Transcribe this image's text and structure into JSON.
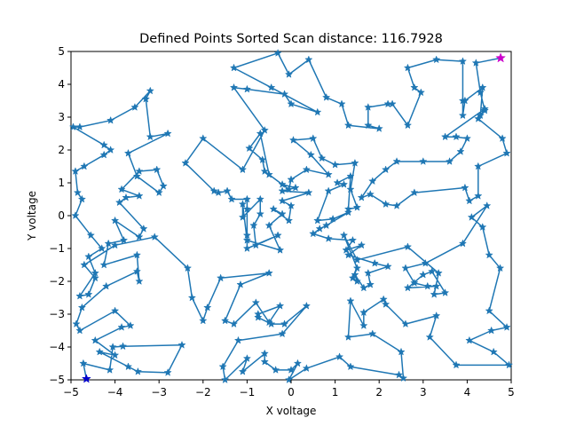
{
  "chart_data": {
    "type": "line",
    "title": "Defined Points Sorted Scan distance: 116.7928",
    "xlabel": "X voltage",
    "ylabel": "Y voltage",
    "xlim": [
      -5,
      5
    ],
    "ylim": [
      -5,
      5
    ],
    "xticks": [
      -5,
      -4,
      -3,
      -2,
      -1,
      0,
      1,
      2,
      3,
      4,
      5
    ],
    "yticks": [
      -5,
      -4,
      -3,
      -2,
      -1,
      0,
      1,
      2,
      3,
      4,
      5
    ],
    "grid": false,
    "line_color": "#1f77b4",
    "marker": "star",
    "start_marker": {
      "x": -4.65,
      "y": -4.97,
      "color": "#0000cc"
    },
    "end_marker": {
      "x": 4.76,
      "y": 4.8,
      "color": "#cc00cc"
    },
    "series": [
      {
        "values": [
          [
            -4.65,
            -4.97
          ],
          [
            -4.72,
            -4.5
          ],
          [
            -4.12,
            -4.7
          ],
          [
            -4.05,
            -4.0
          ],
          [
            -3.82,
            -3.98
          ],
          [
            -2.48,
            -3.94
          ],
          [
            -2.8,
            -4.78
          ],
          [
            -3.48,
            -4.75
          ],
          [
            -3.7,
            -4.6
          ],
          [
            -4.35,
            -4.15
          ],
          [
            -4.0,
            -4.25
          ],
          [
            -4.45,
            -3.8
          ],
          [
            -3.85,
            -3.4
          ],
          [
            -3.65,
            -3.35
          ],
          [
            -4.0,
            -2.9
          ],
          [
            -4.8,
            -3.5
          ],
          [
            -4.88,
            -3.3
          ],
          [
            -4.75,
            -2.8
          ],
          [
            -4.2,
            -2.15
          ],
          [
            -3.5,
            -1.7
          ],
          [
            -3.45,
            -2.0
          ],
          [
            -3.5,
            -1.2
          ],
          [
            -4.25,
            -1.5
          ],
          [
            -4.15,
            -0.85
          ],
          [
            -3.8,
            -0.75
          ],
          [
            -4.0,
            -0.15
          ],
          [
            -3.45,
            -0.65
          ],
          [
            -3.35,
            -0.4
          ],
          [
            -3.9,
            0.4
          ],
          [
            -3.75,
            0.55
          ],
          [
            -3.45,
            0.6
          ],
          [
            -3.85,
            0.8
          ],
          [
            -3.45,
            1.35
          ],
          [
            -3.05,
            1.4
          ],
          [
            -2.9,
            0.9
          ],
          [
            -3.0,
            0.7
          ],
          [
            -3.5,
            1.2
          ],
          [
            -3.7,
            1.9
          ],
          [
            -2.8,
            2.5
          ],
          [
            -3.2,
            2.4
          ],
          [
            -3.3,
            3.55
          ],
          [
            -3.2,
            3.8
          ],
          [
            -3.55,
            3.3
          ],
          [
            -4.1,
            2.9
          ],
          [
            -4.8,
            2.7
          ],
          [
            -4.95,
            2.7
          ],
          [
            -4.25,
            2.15
          ],
          [
            -4.1,
            2.0
          ],
          [
            -4.25,
            1.85
          ],
          [
            -4.7,
            1.5
          ],
          [
            -4.9,
            1.35
          ],
          [
            -4.85,
            0.7
          ],
          [
            -4.75,
            0.5
          ],
          [
            -4.9,
            0.0
          ],
          [
            -4.55,
            -0.6
          ],
          [
            -4.3,
            -1.0
          ],
          [
            -4.6,
            -1.25
          ],
          [
            -4.45,
            -1.75
          ],
          [
            -4.8,
            -2.45
          ],
          [
            -4.6,
            -2.4
          ],
          [
            -4.45,
            -1.9
          ],
          [
            -4.7,
            -1.5
          ],
          [
            -4.0,
            -0.9
          ],
          [
            -3.1,
            -0.65
          ],
          [
            -2.35,
            -1.6
          ],
          [
            -2.25,
            -2.5
          ],
          [
            -2.0,
            -3.2
          ],
          [
            -1.9,
            -2.8
          ],
          [
            -1.6,
            -1.9
          ],
          [
            -0.5,
            -1.75
          ],
          [
            -1.15,
            -2.1
          ],
          [
            -1.5,
            -3.2
          ],
          [
            -1.3,
            -3.3
          ],
          [
            -0.8,
            -2.65
          ],
          [
            -0.5,
            -3.25
          ],
          [
            -0.25,
            -2.75
          ],
          [
            -0.75,
            -3.0
          ],
          [
            -0.75,
            -3.1
          ],
          [
            -0.45,
            -3.3
          ],
          [
            -0.15,
            -3.3
          ],
          [
            0.35,
            -2.75
          ],
          [
            -0.2,
            -3.6
          ],
          [
            -1.2,
            -3.8
          ],
          [
            -1.55,
            -4.6
          ],
          [
            -1.5,
            -5.0
          ],
          [
            -1.0,
            -4.35
          ],
          [
            -1.1,
            -4.75
          ],
          [
            -0.6,
            -4.2
          ],
          [
            -0.6,
            -4.45
          ],
          [
            -0.35,
            -4.7
          ],
          [
            0.0,
            -4.7
          ],
          [
            0.15,
            -4.5
          ],
          [
            -0.05,
            -5.0
          ],
          [
            0.35,
            -4.65
          ],
          [
            1.1,
            -4.3
          ],
          [
            1.35,
            -4.6
          ],
          [
            2.45,
            -4.85
          ],
          [
            2.55,
            -4.95
          ],
          [
            2.5,
            -4.15
          ],
          [
            1.85,
            -3.6
          ],
          [
            1.3,
            -3.7
          ],
          [
            1.35,
            -2.6
          ],
          [
            1.65,
            -3.35
          ],
          [
            1.65,
            -2.95
          ],
          [
            2.1,
            -2.55
          ],
          [
            2.15,
            -2.7
          ],
          [
            2.6,
            -3.3
          ],
          [
            3.3,
            -3.05
          ],
          [
            3.15,
            -3.7
          ],
          [
            3.75,
            -4.55
          ],
          [
            4.95,
            -4.55
          ],
          [
            4.6,
            -4.15
          ],
          [
            4.05,
            -3.8
          ],
          [
            4.55,
            -3.5
          ],
          [
            4.9,
            -3.4
          ],
          [
            4.5,
            -2.9
          ],
          [
            4.75,
            -1.6
          ],
          [
            4.5,
            -1.2
          ],
          [
            4.35,
            -0.35
          ],
          [
            4.1,
            -0.05
          ],
          [
            4.45,
            0.3
          ],
          [
            3.9,
            -0.85
          ],
          [
            3.05,
            -1.45
          ],
          [
            2.6,
            -1.6
          ],
          [
            2.8,
            -2.05
          ],
          [
            3.1,
            -2.15
          ],
          [
            3.3,
            -2.15
          ],
          [
            2.65,
            -2.2
          ],
          [
            3.0,
            -1.8
          ],
          [
            3.2,
            -1.7
          ],
          [
            3.5,
            -2.35
          ],
          [
            3.25,
            -2.4
          ],
          [
            3.35,
            -1.75
          ],
          [
            2.65,
            -0.95
          ],
          [
            1.5,
            -1.35
          ],
          [
            1.2,
            -0.6
          ],
          [
            1.5,
            -1.6
          ],
          [
            1.4,
            -1.9
          ],
          [
            1.5,
            -2.0
          ],
          [
            1.45,
            -1.8
          ],
          [
            1.65,
            -2.2
          ],
          [
            1.8,
            -2.1
          ],
          [
            1.75,
            -1.75
          ],
          [
            2.2,
            -1.55
          ],
          [
            1.9,
            -1.45
          ],
          [
            1.3,
            -1.2
          ],
          [
            1.6,
            -0.9
          ],
          [
            1.25,
            -1.05
          ],
          [
            1.4,
            -0.75
          ],
          [
            0.85,
            -0.7
          ],
          [
            0.5,
            -0.55
          ],
          [
            0.65,
            -0.4
          ],
          [
            0.8,
            -0.3
          ],
          [
            1.3,
            0.1
          ],
          [
            0.95,
            -0.1
          ],
          [
            0.6,
            -0.15
          ],
          [
            0.85,
            0.75
          ],
          [
            1.2,
            0.95
          ],
          [
            1.05,
            1.0
          ],
          [
            1.35,
            1.2
          ],
          [
            1.3,
            0.2
          ],
          [
            1.5,
            0.25
          ],
          [
            1.35,
            0.8
          ],
          [
            1.45,
            1.6
          ],
          [
            1.0,
            1.55
          ],
          [
            0.7,
            1.75
          ],
          [
            0.5,
            2.35
          ],
          [
            0.05,
            2.3
          ],
          [
            0.45,
            1.85
          ],
          [
            0.85,
            1.25
          ],
          [
            0.35,
            1.4
          ],
          [
            0.0,
            1.1
          ],
          [
            -0.05,
            0.8
          ],
          [
            -0.6,
            1.35
          ],
          [
            -0.65,
            1.7
          ],
          [
            -0.95,
            2.05
          ],
          [
            -0.7,
            2.5
          ],
          [
            -0.5,
            1.25
          ],
          [
            -0.2,
            0.95
          ],
          [
            0.1,
            0.85
          ],
          [
            -0.2,
            0.75
          ],
          [
            0.4,
            0.7
          ],
          [
            -0.2,
            0.45
          ],
          [
            0.0,
            0.3
          ],
          [
            -0.05,
            -0.15
          ],
          [
            -0.4,
            0.2
          ],
          [
            -0.2,
            0.05
          ],
          [
            -0.5,
            -0.3
          ],
          [
            -0.25,
            -1.05
          ],
          [
            -1.0,
            -0.75
          ],
          [
            -1.1,
            0.35
          ],
          [
            -1.1,
            -0.05
          ],
          [
            -0.7,
            0.5
          ],
          [
            -0.7,
            0.05
          ],
          [
            -0.85,
            -0.3
          ],
          [
            -0.8,
            -0.9
          ],
          [
            -0.3,
            -0.6
          ],
          [
            -1.0,
            -1.0
          ],
          [
            -1.0,
            -0.6
          ],
          [
            -1.0,
            0.2
          ],
          [
            -1.0,
            0.5
          ],
          [
            -1.35,
            0.5
          ],
          [
            -1.45,
            0.75
          ],
          [
            -1.65,
            0.7
          ],
          [
            -1.75,
            0.75
          ],
          [
            -2.4,
            1.6
          ],
          [
            -2.0,
            2.35
          ],
          [
            -1.1,
            1.4
          ],
          [
            -0.6,
            2.6
          ],
          [
            -1.3,
            3.9
          ],
          [
            -1.0,
            3.85
          ],
          [
            -0.15,
            3.7
          ],
          [
            0.0,
            3.4
          ],
          [
            0.6,
            3.15
          ],
          [
            -0.45,
            3.9
          ],
          [
            -1.3,
            4.5
          ],
          [
            -0.3,
            4.95
          ],
          [
            -0.05,
            4.3
          ],
          [
            0.4,
            4.75
          ],
          [
            0.8,
            3.6
          ],
          [
            1.15,
            3.4
          ],
          [
            1.3,
            2.75
          ],
          [
            2.0,
            2.65
          ],
          [
            1.75,
            2.75
          ],
          [
            1.75,
            3.3
          ],
          [
            2.2,
            3.4
          ],
          [
            2.3,
            3.4
          ],
          [
            2.65,
            2.75
          ],
          [
            2.95,
            3.75
          ],
          [
            2.8,
            3.9
          ],
          [
            2.65,
            4.5
          ],
          [
            3.3,
            4.75
          ],
          [
            3.9,
            4.7
          ],
          [
            3.9,
            3.5
          ],
          [
            3.9,
            3.05
          ],
          [
            3.95,
            3.5
          ],
          [
            4.35,
            3.9
          ],
          [
            4.3,
            3.05
          ],
          [
            4.4,
            3.25
          ],
          [
            3.5,
            2.4
          ],
          [
            3.75,
            2.4
          ],
          [
            4.0,
            2.35
          ],
          [
            3.85,
            1.95
          ],
          [
            3.6,
            1.65
          ],
          [
            3.0,
            1.65
          ],
          [
            2.4,
            1.65
          ],
          [
            2.15,
            1.4
          ],
          [
            1.85,
            1.05
          ],
          [
            1.6,
            0.55
          ],
          [
            1.8,
            0.65
          ],
          [
            2.15,
            0.35
          ],
          [
            2.4,
            0.3
          ],
          [
            2.8,
            0.7
          ],
          [
            3.95,
            0.85
          ],
          [
            4.05,
            0.45
          ],
          [
            4.25,
            0.6
          ],
          [
            4.25,
            1.5
          ],
          [
            4.9,
            1.9
          ],
          [
            4.8,
            2.35
          ],
          [
            4.25,
            2.95
          ],
          [
            4.4,
            3.2
          ],
          [
            4.3,
            3.75
          ],
          [
            4.2,
            4.65
          ],
          [
            4.76,
            4.8
          ]
        ]
      }
    ]
  }
}
